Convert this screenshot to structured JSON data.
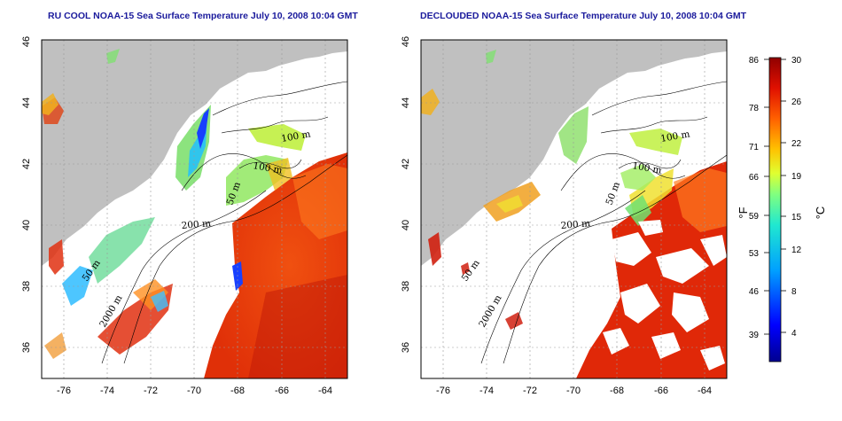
{
  "left_panel": {
    "title": "RU COOL NOAA-15 Sea Surface Temperature July 10, 2008 10:04 GMT",
    "contour_labels": [
      "100 m",
      "100 m",
      "50 m",
      "200 m",
      "50 m",
      "2000 m"
    ]
  },
  "right_panel": {
    "title": "DECLOUDED NOAA-15 Sea Surface Temperature July 10, 2008 10:04 GMT",
    "contour_labels": [
      "100 m",
      "100 m",
      "50 m",
      "200 m",
      "50 m",
      "2000 m"
    ]
  },
  "axes": {
    "lat_ticks": [
      "46",
      "44",
      "42",
      "40",
      "38",
      "36"
    ],
    "lon_ticks": [
      "-76",
      "-74",
      "-72",
      "-70",
      "-68",
      "-66",
      "-64"
    ],
    "lat_range": [
      35,
      46
    ],
    "lon_range": [
      -77,
      -63
    ],
    "grid": "dotted"
  },
  "colorbar": {
    "fahrenheit_labels": [
      "86",
      "78",
      "71",
      "66",
      "59",
      "53",
      "46",
      "39"
    ],
    "celsius_labels": [
      "30",
      "26",
      "22",
      "19",
      "15",
      "12",
      "8",
      "4"
    ],
    "fahrenheit_unit": "°F",
    "celsius_unit": "°C",
    "range_c": [
      0,
      30
    ],
    "colors": [
      "#ffffff",
      "#00008f",
      "#0050ff",
      "#00c8ff",
      "#50ff9f",
      "#dfff20",
      "#ffc000",
      "#ff5000",
      "#d00000",
      "#800000"
    ]
  },
  "colors": {
    "land": "#c0c0c0",
    "water_cloud": "#ffffff",
    "title": "#1a1a9c"
  }
}
